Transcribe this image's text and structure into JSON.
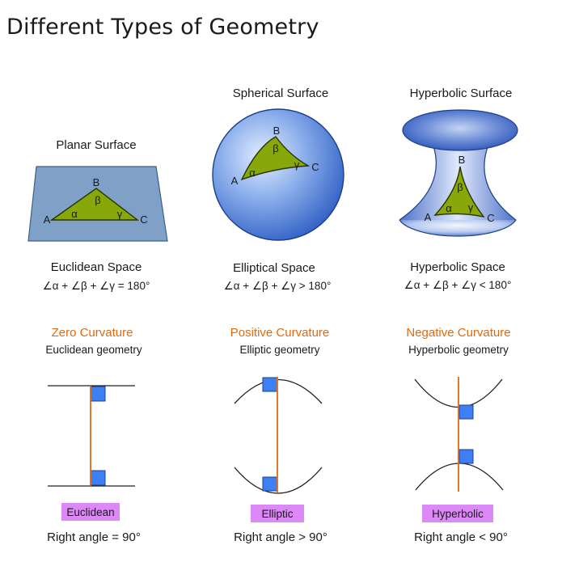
{
  "title": "Different Types of Geometry",
  "colors": {
    "orange": "#e06a12",
    "badge": "#dd88f7",
    "triangle": "#88a80a",
    "plane": "#7fa1c7",
    "right_angle": "#3d7ff5"
  },
  "columns": [
    {
      "surface": "Planar Surface",
      "vertices": {
        "a": "A",
        "b": "B",
        "c": "C"
      },
      "angles": {
        "alpha": "α",
        "beta": "β",
        "gamma": "γ"
      },
      "space": "Euclidean Space",
      "formula": "∠α + ∠β + ∠γ = 180°",
      "curvature": "Zero Curvature",
      "geometry": "Euclidean geometry",
      "badge": "Euclidean",
      "right_angle": "Right angle = 90°"
    },
    {
      "surface": "Spherical Surface",
      "vertices": {
        "a": "A",
        "b": "B",
        "c": "C"
      },
      "angles": {
        "alpha": "α",
        "beta": "β",
        "gamma": "γ"
      },
      "space": "Elliptical Space",
      "formula": "∠α + ∠β + ∠γ > 180°",
      "curvature": "Positive Curvature",
      "geometry": "Elliptic geometry",
      "badge": "Elliptic",
      "right_angle": "Right angle > 90°"
    },
    {
      "surface": "Hyperbolic Surface",
      "vertices": {
        "a": "A",
        "b": "B",
        "c": "C"
      },
      "angles": {
        "alpha": "α",
        "beta": "β",
        "gamma": "γ"
      },
      "space": "Hyperbolic Space",
      "formula": "∠α + ∠β + ∠γ < 180°",
      "curvature": "Negative Curvature",
      "geometry": "Hyperbolic geometry",
      "badge": "Hyperbolic",
      "right_angle": "Right angle < 90°"
    }
  ]
}
